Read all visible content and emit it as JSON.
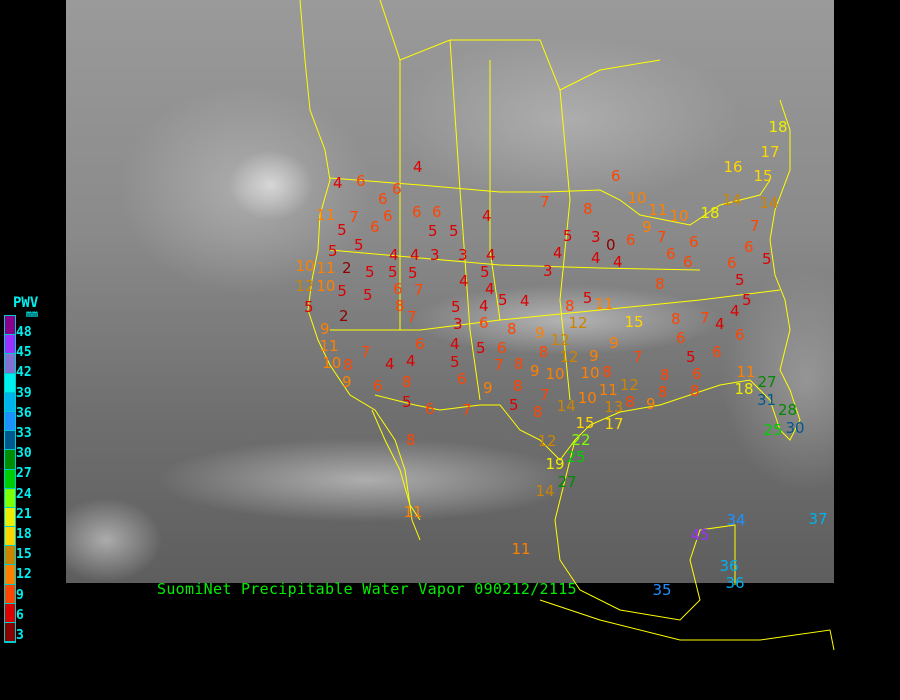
{
  "caption": "SuomiNet Precipitable Water Vapor 090212/2115",
  "legend": {
    "title": "PWV",
    "unit": "mm",
    "labels": [
      "48",
      "45",
      "42",
      "39",
      "36",
      "33",
      "30",
      "27",
      "24",
      "21",
      "18",
      "15",
      "12",
      "9",
      "6",
      "3"
    ],
    "colors": [
      "#8b008b",
      "#9b30ff",
      "#8470d0",
      "#00eeee",
      "#00b2ee",
      "#1e90ff",
      "#00588f",
      "#008b00",
      "#00cd00",
      "#7fff00",
      "#eeee00",
      "#ffd700",
      "#cd8500",
      "#ff8000",
      "#ff4500",
      "#dd0000",
      "#8b0000"
    ]
  },
  "colors": {
    "background": "#000000",
    "borders": "#ffff00",
    "caption": "#00ee00",
    "legend_text": "#00eeee"
  },
  "stations": [
    "4",
    "4",
    "6",
    "6",
    "11",
    "7",
    "6",
    "6",
    "6",
    "6",
    "4",
    "5",
    "6",
    "5",
    "5",
    "7",
    "8",
    "6",
    "5",
    "5",
    "4",
    "4",
    "3",
    "3",
    "4",
    "4",
    "5",
    "3",
    "0",
    "6",
    "4",
    "4",
    "10",
    "11",
    "2",
    "5",
    "5",
    "5",
    "12",
    "10",
    "5",
    "6",
    "7",
    "4",
    "5",
    "3",
    "5",
    "2",
    "5",
    "8",
    "7",
    "5",
    "4",
    "5",
    "4",
    "3",
    "6",
    "4",
    "8",
    "5",
    "11",
    "8",
    "9",
    "12",
    "12",
    "15",
    "9",
    "11",
    "10",
    "8",
    "9",
    "7",
    "4",
    "4",
    "6",
    "4",
    "5",
    "6",
    "8",
    "8",
    "7",
    "12",
    "9",
    "10",
    "9",
    "5",
    "6",
    "8",
    "6",
    "9",
    "8",
    "5",
    "6",
    "7",
    "5",
    "8",
    "7",
    "14",
    "15",
    "10",
    "7",
    "6",
    "6",
    "6",
    "11",
    "9",
    "10",
    "10",
    "8",
    "8",
    "6",
    "7",
    "4",
    "5",
    "4",
    "6",
    "6",
    "5",
    "6",
    "8",
    "8",
    "9",
    "8",
    "7",
    "9",
    "10",
    "8",
    "11",
    "12",
    "8",
    "14",
    "16",
    "15",
    "14",
    "18",
    "17",
    "18",
    "7",
    "6",
    "5",
    "6",
    "5",
    "18",
    "11",
    "27",
    "31",
    "28",
    "25",
    "30",
    "11",
    "8",
    "12",
    "22",
    "25",
    "19",
    "27",
    "14",
    "11",
    "34",
    "45",
    "37",
    "36",
    "35",
    "36",
    "17",
    "13"
  ]
}
